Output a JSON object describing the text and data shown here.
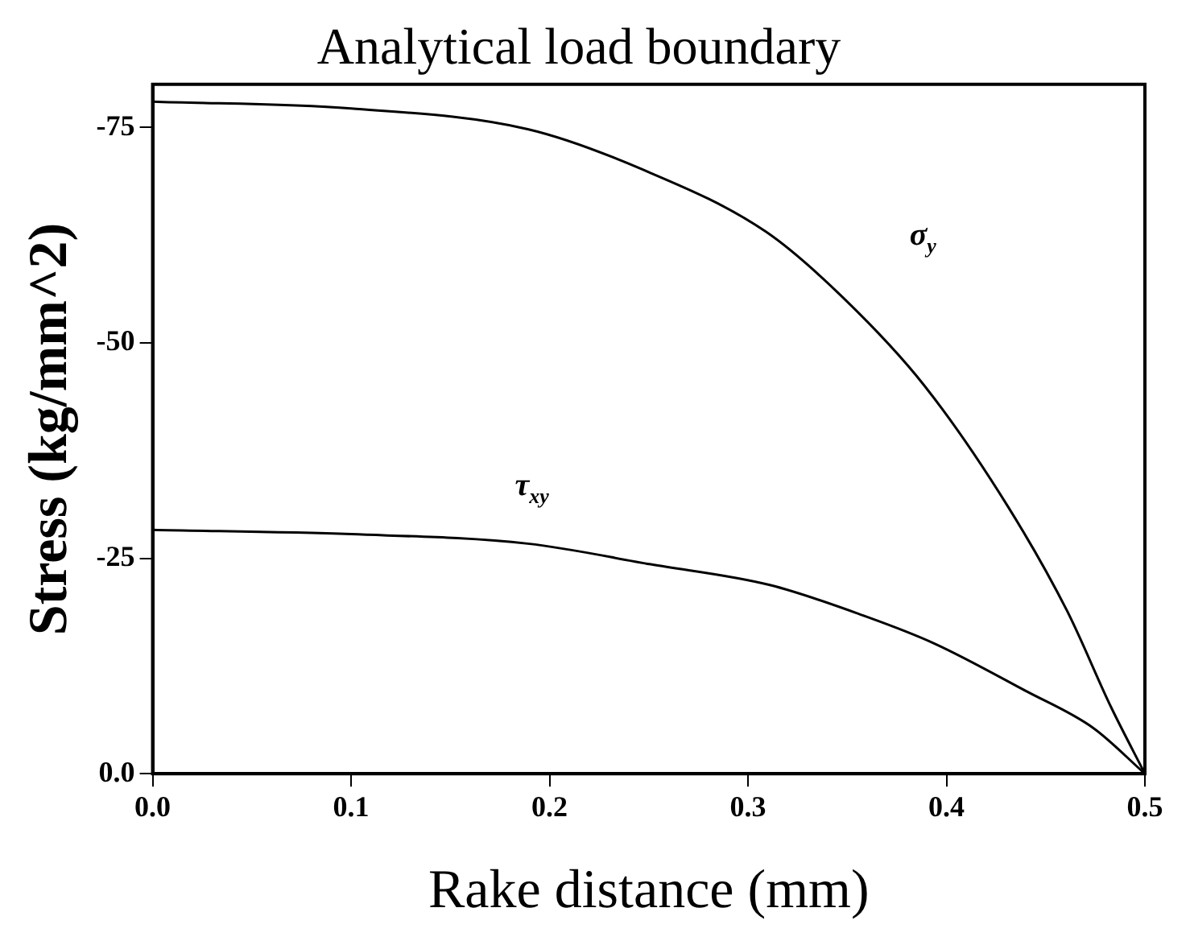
{
  "chart_data": {
    "type": "line",
    "title": "Analytical load boundary",
    "xlabel": "Rake distance (mm)",
    "ylabel": "Stress (kg/mm^2)",
    "xlim": [
      0,
      0.5
    ],
    "xticks": [
      {
        "value": 0,
        "label": "0.0"
      },
      0.1,
      0.2,
      0.3,
      0.4,
      0.5
    ],
    "ylim": [
      0,
      -80
    ],
    "yticks": [
      {
        "value": 0,
        "label": "0.0"
      },
      -25,
      -50,
      -75
    ],
    "grid": false,
    "legend": false,
    "marker": "none",
    "line_style": "solid",
    "series": [
      {
        "color": "#000000",
        "x": [
          0,
          0.1,
          0.189,
          0.246,
          0.309,
          0.349,
          0.389,
          0.431,
          0.461,
          0.483,
          0.5
        ],
        "values": [
          -78,
          -77.2,
          -74.8,
          -70.2,
          -62.9,
          -55,
          -45,
          -31,
          -18.8,
          -7.7,
          0
        ]
      },
      {
        "color": "#000000",
        "x": [
          0,
          0.1,
          0.189,
          0.251,
          0.311,
          0.36,
          0.394,
          0.44,
          0.474,
          0.5
        ],
        "values": [
          -28.3,
          -27.8,
          -26.7,
          -24.3,
          -21.9,
          -18.2,
          -15.1,
          -9.6,
          -5.3,
          0
        ]
      }
    ],
    "annotations": [
      "σ$_{y}$",
      "τ$_{xy}$"
    ]
  }
}
